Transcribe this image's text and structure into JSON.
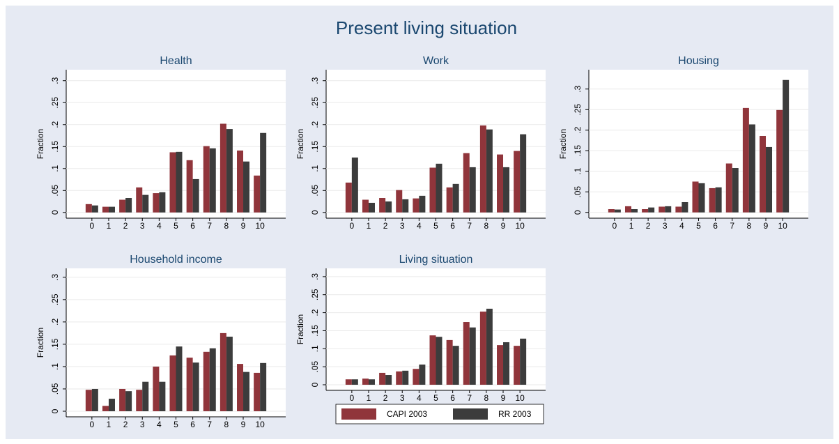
{
  "title": "Present living situation",
  "chart_data": [
    {
      "type": "bar",
      "title": "Health",
      "ylabel": "Fraction",
      "categories": [
        "0",
        "1",
        "2",
        "3",
        "4",
        "5",
        "6",
        "7",
        "8",
        "9",
        "10"
      ],
      "series": [
        {
          "name": "CAPI 2003",
          "color": "#90353b",
          "values": [
            0.019,
            0.013,
            0.029,
            0.057,
            0.044,
            0.137,
            0.119,
            0.151,
            0.202,
            0.141,
            0.084
          ]
        },
        {
          "name": "RR 2003",
          "color": "#3c3c3c",
          "values": [
            0.016,
            0.013,
            0.033,
            0.04,
            0.046,
            0.138,
            0.076,
            0.146,
            0.19,
            0.116,
            0.181
          ]
        }
      ],
      "ylim": [
        -0.013,
        0.325
      ],
      "yticks": [
        0,
        {
          "value": 0.05,
          "label": ".05"
        },
        {
          "value": 0.1,
          "label": ".1"
        },
        {
          "value": 0.15,
          "label": ".15"
        },
        {
          "value": 0.2,
          "label": ".2"
        },
        {
          "value": 0.25,
          "label": ".25"
        },
        {
          "value": 0.3,
          "label": ".3"
        }
      ],
      "grid": true
    },
    {
      "type": "bar",
      "title": "Work",
      "ylabel": "Fraction",
      "categories": [
        "0",
        "1",
        "2",
        "3",
        "4",
        "5",
        "6",
        "7",
        "8",
        "9",
        "10"
      ],
      "series": [
        {
          "name": "CAPI 2003",
          "color": "#90353b",
          "values": [
            0.068,
            0.029,
            0.033,
            0.051,
            0.032,
            0.102,
            0.057,
            0.135,
            0.198,
            0.132,
            0.14
          ]
        },
        {
          "name": "RR 2003",
          "color": "#3c3c3c",
          "values": [
            0.125,
            0.022,
            0.025,
            0.03,
            0.038,
            0.111,
            0.065,
            0.103,
            0.189,
            0.103,
            0.178
          ]
        }
      ],
      "ylim": [
        -0.013,
        0.325
      ],
      "yticks": [
        0,
        {
          "value": 0.05,
          "label": ".05"
        },
        {
          "value": 0.1,
          "label": ".1"
        },
        {
          "value": 0.15,
          "label": ".15"
        },
        {
          "value": 0.2,
          "label": ".2"
        },
        {
          "value": 0.25,
          "label": ".25"
        },
        {
          "value": 0.3,
          "label": ".3"
        }
      ],
      "grid": true
    },
    {
      "type": "bar",
      "title": "Housing",
      "ylabel": "Fraction",
      "categories": [
        "0",
        "1",
        "2",
        "3",
        "4",
        "5",
        "6",
        "7",
        "8",
        "9",
        "10"
      ],
      "series": [
        {
          "name": "CAPI 2003",
          "color": "#90353b",
          "values": [
            0.008,
            0.015,
            0.008,
            0.014,
            0.014,
            0.075,
            0.059,
            0.119,
            0.254,
            0.186,
            0.249
          ]
        },
        {
          "name": "RR 2003",
          "color": "#3c3c3c",
          "values": [
            0.007,
            0.008,
            0.012,
            0.015,
            0.025,
            0.071,
            0.061,
            0.108,
            0.214,
            0.159,
            0.322
          ]
        }
      ],
      "ylim": [
        -0.014,
        0.347
      ],
      "yticks": [
        0,
        {
          "value": 0.05,
          "label": ".05"
        },
        {
          "value": 0.1,
          "label": ".1"
        },
        {
          "value": 0.15,
          "label": ".15"
        },
        {
          "value": 0.2,
          "label": ".2"
        },
        {
          "value": 0.25,
          "label": ".25"
        },
        {
          "value": 0.3,
          "label": ".3"
        }
      ],
      "grid": true
    },
    {
      "type": "bar",
      "title": "Household income",
      "ylabel": "Fraction",
      "categories": [
        "0",
        "1",
        "2",
        "3",
        "4",
        "5",
        "6",
        "7",
        "8",
        "9",
        "10"
      ],
      "series": [
        {
          "name": "CAPI 2003",
          "color": "#90353b",
          "values": [
            0.048,
            0.012,
            0.05,
            0.048,
            0.1,
            0.125,
            0.12,
            0.133,
            0.175,
            0.106,
            0.086
          ]
        },
        {
          "name": "RR 2003",
          "color": "#3c3c3c",
          "values": [
            0.05,
            0.028,
            0.045,
            0.066,
            0.066,
            0.145,
            0.109,
            0.141,
            0.167,
            0.088,
            0.108
          ]
        }
      ],
      "ylim": [
        -0.0125,
        0.32
      ],
      "yticks": [
        0,
        {
          "value": 0.05,
          "label": ".05"
        },
        {
          "value": 0.1,
          "label": ".1"
        },
        {
          "value": 0.15,
          "label": ".15"
        },
        {
          "value": 0.2,
          "label": ".2"
        },
        {
          "value": 0.25,
          "label": ".25"
        },
        {
          "value": 0.3,
          "label": ".3"
        }
      ],
      "grid": true
    },
    {
      "type": "bar",
      "title": "Living situation",
      "ylabel": "Fraction",
      "categories": [
        "0",
        "1",
        "2",
        "3",
        "4",
        "5",
        "6",
        "7",
        "8",
        "9",
        "10"
      ],
      "series": [
        {
          "name": "CAPI 2003",
          "color": "#90353b",
          "values": [
            0.015,
            0.017,
            0.033,
            0.037,
            0.044,
            0.137,
            0.124,
            0.174,
            0.203,
            0.11,
            0.108
          ]
        },
        {
          "name": "RR 2003",
          "color": "#3c3c3c",
          "values": [
            0.015,
            0.015,
            0.027,
            0.039,
            0.056,
            0.133,
            0.108,
            0.159,
            0.211,
            0.118,
            0.128
          ]
        }
      ],
      "ylim": [
        -0.0155,
        0.323
      ],
      "yticks": [
        0,
        {
          "value": 0.05,
          "label": ".05"
        },
        {
          "value": 0.1,
          "label": ".1"
        },
        {
          "value": 0.15,
          "label": ".15"
        },
        {
          "value": 0.2,
          "label": ".2"
        },
        {
          "value": 0.25,
          "label": ".25"
        },
        {
          "value": 0.3,
          "label": ".3"
        }
      ],
      "grid": true
    }
  ]
}
